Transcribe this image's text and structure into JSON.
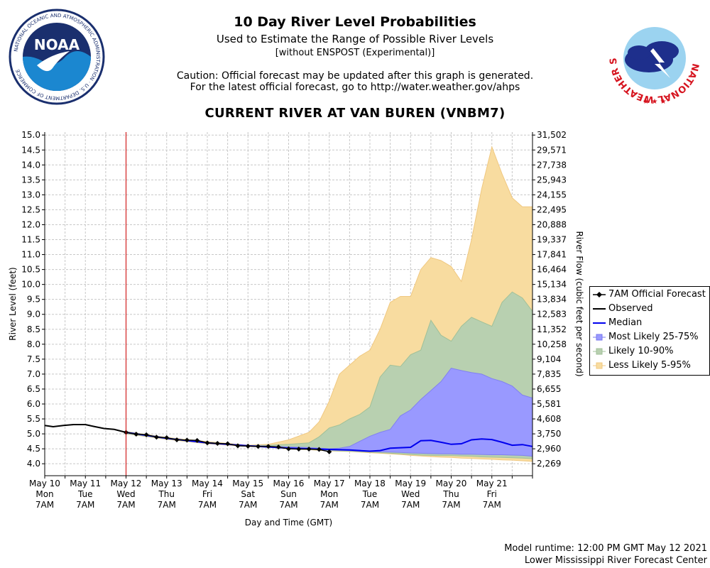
{
  "header": {
    "title": "10 Day River Level Probabilities",
    "subtitle": "Used to Estimate the Range of Possible River Levels",
    "subtitle2": "[without ENSPOST (Experimental)]",
    "caution1": "Caution: Official forecast may be updated after this graph is generated.",
    "caution2": "For the latest official forecast, go to http://water.weather.gov/ahps",
    "station": "CURRENT RIVER AT VAN BUREN (VNBM7)"
  },
  "logos": {
    "noaa_text": "NOAA",
    "noaa_ring": "NATIONAL OCEANIC AND ATMOSPHERIC ADMINISTRATION · U.S. DEPARTMENT OF COMMERCE",
    "nws_ring": "NATIONAL WEATHER SERVICE"
  },
  "footer": {
    "runtime": "Model runtime: 12:00 PM GMT May 12 2021",
    "center": "Lower Mississippi River Forecast Center"
  },
  "colors": {
    "observed": "#000000",
    "median": "#0000ee",
    "band_25_75": "#9999ff",
    "band_10_90": "#b8d0b0",
    "band_5_95": "#f8dca0",
    "now_line": "#cc0000",
    "grid": "#c8c8c8"
  },
  "chart_data": {
    "type": "area",
    "xlabel": "Day and Time (GMT)",
    "ylabel": "River Level (feet)",
    "ylabel_right": "River Flow (cubic feet per second)",
    "xlim": [
      "2021-05-10 07:00",
      "2021-05-22 07:00"
    ],
    "ylim": [
      3.6,
      15.1
    ],
    "y_ticks": [
      "15.0",
      "14.5",
      "14.0",
      "13.5",
      "13.0",
      "12.5",
      "12.0",
      "11.5",
      "11.0",
      "10.5",
      "10.0",
      "9.5",
      "9.0",
      "8.5",
      "8.0",
      "7.5",
      "7.0",
      "6.5",
      "6.0",
      "5.5",
      "5.0",
      "4.5",
      "4.0"
    ],
    "y_tick_values": [
      15.0,
      14.5,
      14.0,
      13.5,
      13.0,
      12.5,
      12.0,
      11.5,
      11.0,
      10.5,
      10.0,
      9.5,
      9.0,
      8.5,
      8.0,
      7.5,
      7.0,
      6.5,
      6.0,
      5.5,
      5.0,
      4.5,
      4.0
    ],
    "right_ticks": [
      "31,502",
      "29,571",
      "27,738",
      "25,943",
      "24,155",
      "22,495",
      "20,888",
      "19,337",
      "17,841",
      "16,464",
      "15,134",
      "13,834",
      "12,583",
      "11,352",
      "10,258",
      "9,104",
      "7,835",
      "6,655",
      "5,581",
      "4,608",
      "3,750",
      "2,960",
      "2,269"
    ],
    "x_ticks": [
      {
        "date": "May 10",
        "dow": "Mon",
        "time": "7AM"
      },
      {
        "date": "May 11",
        "dow": "Tue",
        "time": "7AM"
      },
      {
        "date": "May 12",
        "dow": "Wed",
        "time": "7AM"
      },
      {
        "date": "May 13",
        "dow": "Thu",
        "time": "7AM"
      },
      {
        "date": "May 14",
        "dow": "Fri",
        "time": "7AM"
      },
      {
        "date": "May 15",
        "dow": "Sat",
        "time": "7AM"
      },
      {
        "date": "May 16",
        "dow": "Sun",
        "time": "7AM"
      },
      {
        "date": "May 17",
        "dow": "Mon",
        "time": "7AM"
      },
      {
        "date": "May 18",
        "dow": "Tue",
        "time": "7AM"
      },
      {
        "date": "May 19",
        "dow": "Wed",
        "time": "7AM"
      },
      {
        "date": "May 20",
        "dow": "Thu",
        "time": "7AM"
      },
      {
        "date": "May 21",
        "dow": "Fri",
        "time": "7AM"
      }
    ],
    "now_marker": "2021-05-12 07:00",
    "legend": [
      {
        "label": "7AM Official Forecast",
        "key": "forecast"
      },
      {
        "label": "Observed",
        "key": "observed"
      },
      {
        "label": "Median",
        "key": "median"
      },
      {
        "label": "Most Likely 25-75%",
        "key": "band_25_75"
      },
      {
        "label": "Likely 10-90%",
        "key": "band_10_90"
      },
      {
        "label": "Less Likely 5-95%",
        "key": "band_5_95"
      }
    ],
    "series": {
      "observed": {
        "name": "Observed",
        "x": [
          "2021-05-10 07:00",
          "2021-05-10 12:00",
          "2021-05-10 18:00",
          "2021-05-11 00:00",
          "2021-05-11 07:00",
          "2021-05-11 12:00",
          "2021-05-11 18:00",
          "2021-05-12 00:00",
          "2021-05-12 07:00"
        ],
        "y": [
          5.28,
          5.24,
          5.28,
          5.31,
          5.31,
          5.25,
          5.18,
          5.15,
          5.05
        ]
      },
      "forecast": {
        "name": "7AM Official Forecast",
        "x": [
          "2021-05-12 07:00",
          "2021-05-12 13:00",
          "2021-05-12 19:00",
          "2021-05-13 01:00",
          "2021-05-13 07:00",
          "2021-05-13 13:00",
          "2021-05-13 19:00",
          "2021-05-14 01:00",
          "2021-05-14 07:00",
          "2021-05-14 13:00",
          "2021-05-14 19:00",
          "2021-05-15 01:00",
          "2021-05-15 07:00",
          "2021-05-15 13:00",
          "2021-05-15 19:00",
          "2021-05-16 01:00",
          "2021-05-16 07:00",
          "2021-05-16 13:00",
          "2021-05-16 19:00",
          "2021-05-17 01:00",
          "2021-05-17 07:00"
        ],
        "y": [
          5.05,
          4.99,
          4.97,
          4.89,
          4.87,
          4.8,
          4.79,
          4.78,
          4.7,
          4.68,
          4.67,
          4.6,
          4.59,
          4.58,
          4.58,
          4.56,
          4.5,
          4.49,
          4.49,
          4.48,
          4.4
        ]
      },
      "median": {
        "name": "Median",
        "x": [
          "2021-05-12 07:00",
          "2021-05-13 07:00",
          "2021-05-14 07:00",
          "2021-05-15 07:00",
          "2021-05-16 07:00",
          "2021-05-17 07:00",
          "2021-05-17 19:00",
          "2021-05-18 07:00",
          "2021-05-18 13:00",
          "2021-05-18 19:00",
          "2021-05-19 07:00",
          "2021-05-19 13:00",
          "2021-05-19 19:00",
          "2021-05-20 01:00",
          "2021-05-20 07:00",
          "2021-05-20 13:00",
          "2021-05-20 19:00",
          "2021-05-21 01:00",
          "2021-05-21 07:00",
          "2021-05-21 13:00",
          "2021-05-21 19:00",
          "2021-05-22 01:00",
          "2021-05-22 07:00"
        ],
        "y": [
          5.05,
          4.85,
          4.7,
          4.6,
          4.52,
          4.48,
          4.46,
          4.42,
          4.44,
          4.52,
          4.55,
          4.77,
          4.78,
          4.72,
          4.65,
          4.67,
          4.8,
          4.83,
          4.81,
          4.72,
          4.62,
          4.64,
          4.58
        ]
      },
      "band_x": [
        "2021-05-12 07:00",
        "2021-05-13 07:00",
        "2021-05-14 07:00",
        "2021-05-15 07:00",
        "2021-05-15 19:00",
        "2021-05-16 07:00",
        "2021-05-16 19:00",
        "2021-05-17 01:00",
        "2021-05-17 07:00",
        "2021-05-17 13:00",
        "2021-05-17 19:00",
        "2021-05-18 01:00",
        "2021-05-18 07:00",
        "2021-05-18 13:00",
        "2021-05-18 19:00",
        "2021-05-19 01:00",
        "2021-05-19 07:00",
        "2021-05-19 13:00",
        "2021-05-19 19:00",
        "2021-05-20 01:00",
        "2021-05-20 07:00",
        "2021-05-20 13:00",
        "2021-05-20 19:00",
        "2021-05-21 01:00",
        "2021-05-21 07:00",
        "2021-05-21 13:00",
        "2021-05-21 19:00",
        "2021-05-22 01:00",
        "2021-05-22 07:00"
      ],
      "band_5_95": {
        "name": "Less Likely 5-95%",
        "low": [
          5.0,
          4.82,
          4.67,
          4.58,
          4.55,
          4.5,
          4.47,
          4.45,
          4.43,
          4.42,
          4.41,
          4.39,
          4.37,
          4.35,
          4.33,
          4.31,
          4.28,
          4.26,
          4.24,
          4.22,
          4.21,
          4.19,
          4.18,
          4.16,
          4.15,
          4.13,
          4.12,
          4.1,
          4.08
        ],
        "high": [
          5.08,
          4.88,
          4.74,
          4.62,
          4.65,
          4.8,
          5.05,
          5.4,
          6.1,
          7.0,
          7.3,
          7.6,
          7.8,
          8.5,
          9.4,
          9.6,
          9.6,
          10.5,
          10.9,
          10.8,
          10.6,
          10.1,
          11.5,
          13.2,
          14.6,
          13.7,
          12.9,
          12.6,
          12.6
        ]
      },
      "band_10_90": {
        "name": "Likely 10-90%",
        "low": [
          5.01,
          4.83,
          4.68,
          4.59,
          4.56,
          4.51,
          4.48,
          4.46,
          4.44,
          4.43,
          4.42,
          4.4,
          4.39,
          4.37,
          4.35,
          4.33,
          4.31,
          4.29,
          4.28,
          4.27,
          4.27,
          4.26,
          4.25,
          4.23,
          4.22,
          4.21,
          4.2,
          4.19,
          4.17
        ],
        "high": [
          5.07,
          4.87,
          4.72,
          4.61,
          4.62,
          4.65,
          4.7,
          4.9,
          5.2,
          5.3,
          5.5,
          5.65,
          5.9,
          6.9,
          7.3,
          7.25,
          7.65,
          7.8,
          8.8,
          8.3,
          8.1,
          8.6,
          8.9,
          8.75,
          8.6,
          9.4,
          9.75,
          9.55,
          9.1
        ]
      },
      "band_25_75": {
        "name": "Most Likely 25-75%",
        "low": [
          5.03,
          4.84,
          4.69,
          4.6,
          4.57,
          4.52,
          4.49,
          4.47,
          4.46,
          4.45,
          4.44,
          4.42,
          4.41,
          4.4,
          4.39,
          4.38,
          4.36,
          4.35,
          4.34,
          4.33,
          4.33,
          4.32,
          4.32,
          4.31,
          4.3,
          4.3,
          4.29,
          4.28,
          4.25
        ],
        "high": [
          5.06,
          4.86,
          4.71,
          4.61,
          4.59,
          4.56,
          4.54,
          4.52,
          4.5,
          4.52,
          4.58,
          4.75,
          4.92,
          5.05,
          5.15,
          5.6,
          5.8,
          6.15,
          6.45,
          6.75,
          7.2,
          7.12,
          7.05,
          7.0,
          6.85,
          6.75,
          6.6,
          6.3,
          6.2
        ]
      }
    }
  }
}
